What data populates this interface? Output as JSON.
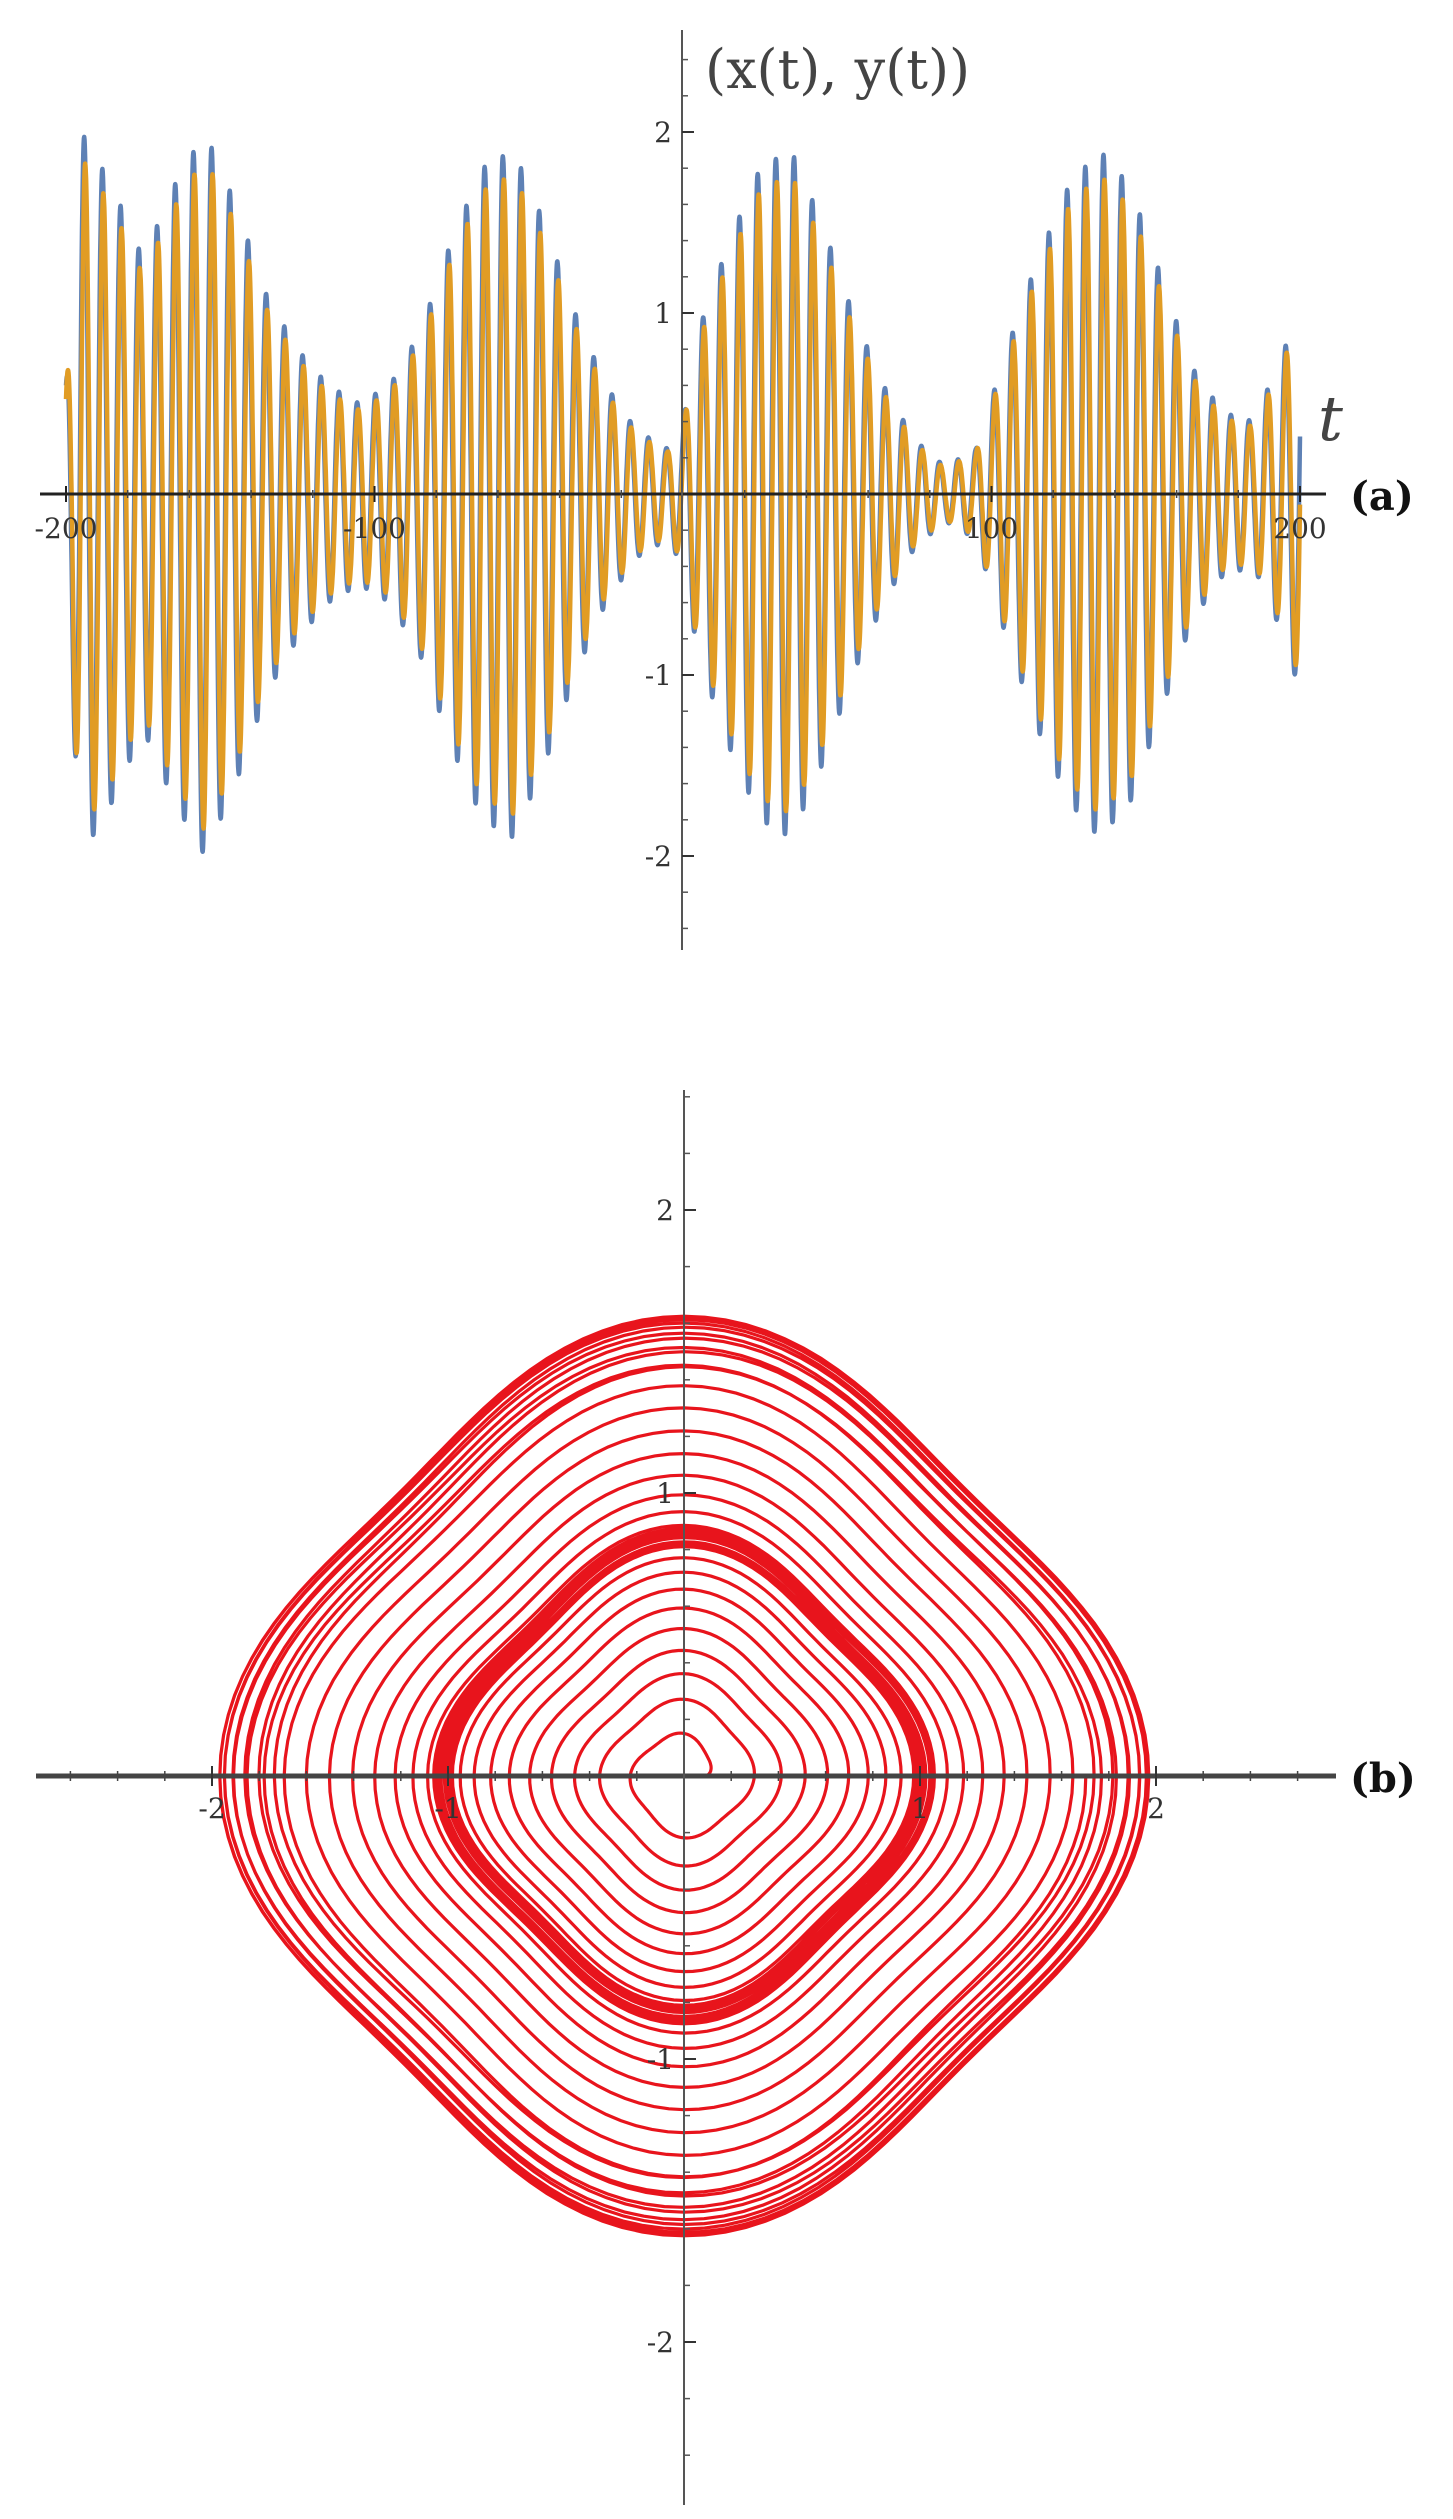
{
  "chart_data": [
    {
      "panel_label": "(a)",
      "type": "line",
      "xlabel": "t",
      "ylabel": "(x(t), y(t))",
      "xlim": [
        -200,
        200
      ],
      "ylim": [
        -2.5,
        2.5
      ],
      "xticks": [
        -200,
        -100,
        100,
        200
      ],
      "yticks": [
        -2,
        -1,
        1,
        2
      ],
      "xtick_labels": [
        "-200",
        "-100",
        "100",
        "200"
      ],
      "ytick_labels": [
        "-2",
        "-1",
        "1",
        "2"
      ],
      "grid": false,
      "series_colors": [
        "#5e81b5",
        "#e19c24"
      ],
      "envelope": {
        "t": [
          -200,
          -195,
          -185,
          -175,
          -165,
          -155,
          -145,
          -135,
          -125,
          -115,
          -105,
          -95,
          -85,
          -75,
          -65,
          -55,
          -45,
          -35,
          -25,
          -15,
          -5,
          0,
          5,
          15,
          25,
          35,
          45,
          55,
          65,
          75,
          85,
          95,
          105,
          115,
          125,
          135,
          145,
          155,
          165,
          175,
          185,
          195,
          200
        ],
        "amplitude": [
          0.6,
          2.0,
          1.7,
          1.3,
          1.7,
          2.0,
          1.6,
          1.1,
          0.8,
          0.6,
          0.5,
          0.6,
          0.9,
          1.4,
          1.8,
          1.9,
          1.5,
          1.0,
          0.6,
          0.35,
          0.25,
          0.4,
          0.9,
          1.4,
          1.8,
          1.9,
          1.5,
          1.0,
          0.6,
          0.3,
          0.15,
          0.25,
          0.8,
          1.3,
          1.7,
          1.9,
          1.7,
          1.2,
          0.7,
          0.45,
          0.4,
          0.8,
          1.1
        ]
      },
      "oscillation_period": 5.9,
      "phase_lag_rad": 0.35
    },
    {
      "panel_label": "(b)",
      "type": "line",
      "xlabel": "",
      "ylabel": "",
      "xlim": [
        -2.8,
        2.8
      ],
      "ylim": [
        -2.6,
        2.6
      ],
      "xticks": [
        -2,
        -1,
        1,
        2
      ],
      "yticks": [
        -2,
        -1,
        1,
        2
      ],
      "xtick_labels": [
        "-2",
        "-1",
        "1",
        "2"
      ],
      "ytick_labels": [
        "-2",
        "-1",
        "1",
        "2"
      ],
      "grid": false,
      "series_colors": [
        "#e8141c"
      ],
      "trajectory_radius_range": [
        0.05,
        2.0
      ]
    }
  ]
}
